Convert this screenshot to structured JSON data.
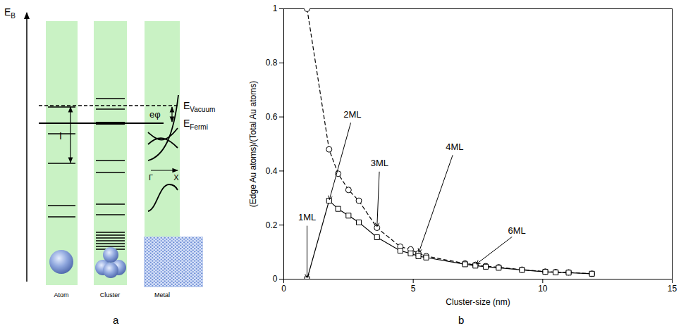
{
  "diagram": {
    "panel_label": "a",
    "axis_label": {
      "main": "E",
      "sub": "B"
    },
    "vacuum": {
      "main": "E",
      "sub": "Vacuum"
    },
    "fermi": {
      "main": "E",
      "sub": "Fermi"
    },
    "work_function": "eφ",
    "ionization": "I",
    "columns": [
      "Atom",
      "Cluster",
      "Metal"
    ],
    "k_axis": [
      "Γ",
      "X"
    ]
  },
  "chart_data": {
    "type": "line",
    "panel_label": "b",
    "xlabel": "Cluster-size (nm)",
    "ylabel": "(Edge Au atoms)/(Total Au atoms)",
    "xlim": [
      0,
      15
    ],
    "xticks": [
      0,
      5,
      10,
      15
    ],
    "ylim": [
      0,
      1
    ],
    "yticks": [
      0,
      0.2,
      0.4,
      0.6,
      0.8,
      1
    ],
    "grid": false,
    "x": [
      0.9,
      1.75,
      2.1,
      2.5,
      2.9,
      3.6,
      4.5,
      4.9,
      5.2,
      5.5,
      7.0,
      7.4,
      7.8,
      8.3,
      9.2,
      10.1,
      10.5,
      11.0,
      11.9
    ],
    "series": [
      {
        "color": "#000000",
        "marker": "circle",
        "line_style": "dashed",
        "values": [
          1.0,
          0.48,
          0.39,
          0.33,
          0.29,
          0.19,
          0.12,
          0.11,
          0.095,
          0.085,
          0.058,
          0.053,
          0.048,
          0.044,
          0.035,
          0.028,
          0.026,
          0.025,
          0.02
        ]
      },
      {
        "color": "#000000",
        "marker": "square",
        "line_style": "solid",
        "values": [
          0,
          0.29,
          0.26,
          0.235,
          0.21,
          0.155,
          0.105,
          0.095,
          0.085,
          0.08,
          0.055,
          0.05,
          0.046,
          0.042,
          0.034,
          0.027,
          0.025,
          0.024,
          0.02
        ]
      }
    ],
    "annotations": [
      {
        "text": "1ML",
        "x": 0.9,
        "y": 0
      },
      {
        "text": "2ML",
        "x": 1.75,
        "y": 0.29
      },
      {
        "text": "3ML",
        "x": 3.6,
        "y": 0.19
      },
      {
        "text": "4ML",
        "x": 5.2,
        "y": 0.095
      },
      {
        "text": "6ML",
        "x": 7.4,
        "y": 0.053
      }
    ]
  }
}
